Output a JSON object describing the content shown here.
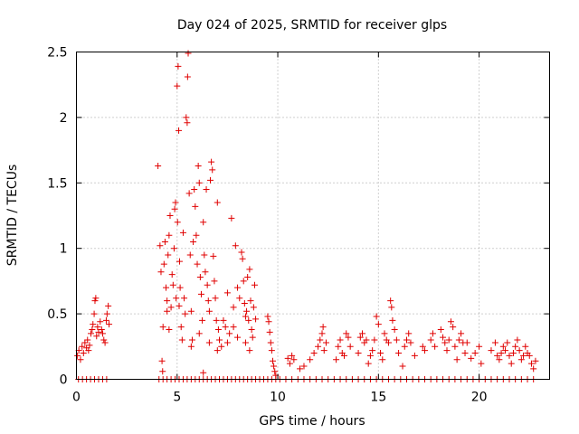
{
  "chart_data": {
    "type": "scatter",
    "title": "Day 024 of 2025, SRMTID for receiver glps",
    "xlabel": "GPS time / hours",
    "ylabel": "SRMTID / TECUs",
    "xlim": [
      0,
      23.5
    ],
    "ylim": [
      0,
      2.5
    ],
    "x_ticks": [
      0,
      5,
      10,
      15,
      20
    ],
    "x_tick_labels": [
      "0",
      "5",
      "10",
      "15",
      "20"
    ],
    "y_ticks": [
      0,
      0.5,
      1,
      1.5,
      2,
      2.5
    ],
    "y_tick_labels": [
      "0",
      "0.5",
      "1",
      "1.5",
      "2",
      "2.5"
    ],
    "grid": true,
    "marker": "+",
    "color": "#e00000",
    "series": [
      {
        "name": "SRMTID",
        "points": [
          [
            0.05,
            0.18
          ],
          [
            0.12,
            0.22
          ],
          [
            0.2,
            0.15
          ],
          [
            0.28,
            0.25
          ],
          [
            0.35,
            0.2
          ],
          [
            0.42,
            0.28
          ],
          [
            0.5,
            0.24
          ],
          [
            0.55,
            0.3
          ],
          [
            0.6,
            0.22
          ],
          [
            0.65,
            0.26
          ],
          [
            0.72,
            0.35
          ],
          [
            0.78,
            0.38
          ],
          [
            0.82,
            0.42
          ],
          [
            0.88,
            0.5
          ],
          [
            0.92,
            0.6
          ],
          [
            0.96,
            0.62
          ],
          [
            1.0,
            0.33
          ],
          [
            1.05,
            0.4
          ],
          [
            1.1,
            0.36
          ],
          [
            1.18,
            0.44
          ],
          [
            1.25,
            0.38
          ],
          [
            1.3,
            0.35
          ],
          [
            1.36,
            0.3
          ],
          [
            1.42,
            0.28
          ],
          [
            1.48,
            0.45
          ],
          [
            1.52,
            0.5
          ],
          [
            1.58,
            0.56
          ],
          [
            1.62,
            0.42
          ],
          [
            0.1,
            0.0
          ],
          [
            0.3,
            0.0
          ],
          [
            0.5,
            0.0
          ],
          [
            0.7,
            0.0
          ],
          [
            0.9,
            0.0
          ],
          [
            1.1,
            0.0
          ],
          [
            1.3,
            0.0
          ],
          [
            1.5,
            0.0
          ],
          [
            4.05,
            1.63
          ],
          [
            4.15,
            1.02
          ],
          [
            4.2,
            0.82
          ],
          [
            4.25,
            0.14
          ],
          [
            4.28,
            0.06
          ],
          [
            4.3,
            0.4
          ],
          [
            4.35,
            0.88
          ],
          [
            4.4,
            1.05
          ],
          [
            4.45,
            0.7
          ],
          [
            4.5,
            0.6
          ],
          [
            4.55,
            0.95
          ],
          [
            4.6,
            1.1
          ],
          [
            4.65,
            1.25
          ],
          [
            4.7,
            0.55
          ],
          [
            4.75,
            0.8
          ],
          [
            4.8,
            0.72
          ],
          [
            4.85,
            1.0
          ],
          [
            4.88,
            1.3
          ],
          [
            4.92,
            1.35
          ],
          [
            4.95,
            0.62
          ],
          [
            5.0,
            2.24
          ],
          [
            5.02,
            1.2
          ],
          [
            5.05,
            2.39
          ],
          [
            5.08,
            1.9
          ],
          [
            5.12,
            0.9
          ],
          [
            5.15,
            0.7
          ],
          [
            5.2,
            0.4
          ],
          [
            5.25,
            0.3
          ],
          [
            5.3,
            1.12
          ],
          [
            5.35,
            0.62
          ],
          [
            5.4,
            0.5
          ],
          [
            5.45,
            2.0
          ],
          [
            5.5,
            1.96
          ],
          [
            5.52,
            2.31
          ],
          [
            5.55,
            2.49
          ],
          [
            5.6,
            1.42
          ],
          [
            5.65,
            0.95
          ],
          [
            5.7,
            0.52
          ],
          [
            5.75,
            0.3
          ],
          [
            5.8,
            1.05
          ],
          [
            5.85,
            1.45
          ],
          [
            5.9,
            1.32
          ],
          [
            5.95,
            1.1
          ],
          [
            6.0,
            0.88
          ],
          [
            6.05,
            1.63
          ],
          [
            6.1,
            1.5
          ],
          [
            6.15,
            0.78
          ],
          [
            6.2,
            0.65
          ],
          [
            6.25,
            0.45
          ],
          [
            6.3,
            1.2
          ],
          [
            6.35,
            0.95
          ],
          [
            6.4,
            0.82
          ],
          [
            6.45,
            1.45
          ],
          [
            6.5,
            0.72
          ],
          [
            6.55,
            0.6
          ],
          [
            6.6,
            0.52
          ],
          [
            6.65,
            1.52
          ],
          [
            6.7,
            1.66
          ],
          [
            6.75,
            1.6
          ],
          [
            6.8,
            0.94
          ],
          [
            6.85,
            0.75
          ],
          [
            6.9,
            0.62
          ],
          [
            6.95,
            0.45
          ],
          [
            7.0,
            1.35
          ],
          [
            7.05,
            0.38
          ],
          [
            7.1,
            0.3
          ],
          [
            7.2,
            0.25
          ],
          [
            7.3,
            0.45
          ],
          [
            7.4,
            0.4
          ],
          [
            7.5,
            0.66
          ],
          [
            7.6,
            0.35
          ],
          [
            7.7,
            1.23
          ],
          [
            7.8,
            0.55
          ],
          [
            7.9,
            1.02
          ],
          [
            8.0,
            0.7
          ],
          [
            8.1,
            0.62
          ],
          [
            8.2,
            0.97
          ],
          [
            8.25,
            0.92
          ],
          [
            8.3,
            0.75
          ],
          [
            8.35,
            0.58
          ],
          [
            8.4,
            0.48
          ],
          [
            8.45,
            0.52
          ],
          [
            8.5,
            0.78
          ],
          [
            8.55,
            0.45
          ],
          [
            8.6,
            0.84
          ],
          [
            8.65,
            0.6
          ],
          [
            8.7,
            0.38
          ],
          [
            8.75,
            0.32
          ],
          [
            8.8,
            0.55
          ],
          [
            8.85,
            0.72
          ],
          [
            8.9,
            0.46
          ],
          [
            4.5,
            0.52
          ],
          [
            4.6,
            0.38
          ],
          [
            5.1,
            0.56
          ],
          [
            5.7,
            0.25
          ],
          [
            6.1,
            0.35
          ],
          [
            6.3,
            0.05
          ],
          [
            6.6,
            0.28
          ],
          [
            7.0,
            0.22
          ],
          [
            7.5,
            0.28
          ],
          [
            7.8,
            0.4
          ],
          [
            8.0,
            0.32
          ],
          [
            8.4,
            0.28
          ],
          [
            8.6,
            0.22
          ],
          [
            4.1,
            0.0
          ],
          [
            4.3,
            0.0
          ],
          [
            4.5,
            0.0
          ],
          [
            4.7,
            0.0
          ],
          [
            4.9,
            0.0
          ],
          [
            5.1,
            0.0
          ],
          [
            5.3,
            0.0
          ],
          [
            5.5,
            0.0
          ],
          [
            5.7,
            0.0
          ],
          [
            5.9,
            0.0
          ],
          [
            6.1,
            0.0
          ],
          [
            6.3,
            0.0
          ],
          [
            6.5,
            0.0
          ],
          [
            6.7,
            0.0
          ],
          [
            6.9,
            0.0
          ],
          [
            7.1,
            0.0
          ],
          [
            7.3,
            0.0
          ],
          [
            7.5,
            0.0
          ],
          [
            7.7,
            0.0
          ],
          [
            7.9,
            0.0
          ],
          [
            8.1,
            0.0
          ],
          [
            8.3,
            0.0
          ],
          [
            8.5,
            0.0
          ],
          [
            8.7,
            0.0
          ],
          [
            8.9,
            0.0
          ],
          [
            9.1,
            0.0
          ],
          [
            9.3,
            0.0
          ],
          [
            9.5,
            0.0
          ],
          [
            9.7,
            0.0
          ],
          [
            9.9,
            0.0
          ],
          [
            9.5,
            0.48
          ],
          [
            9.55,
            0.44
          ],
          [
            9.6,
            0.36
          ],
          [
            9.65,
            0.28
          ],
          [
            9.7,
            0.22
          ],
          [
            9.75,
            0.14
          ],
          [
            9.8,
            0.1
          ],
          [
            9.85,
            0.06
          ],
          [
            9.9,
            0.03
          ],
          [
            10.5,
            0.16
          ],
          [
            10.6,
            0.12
          ],
          [
            10.7,
            0.18
          ],
          [
            10.8,
            0.15
          ],
          [
            11.1,
            0.08
          ],
          [
            11.3,
            0.1
          ],
          [
            11.6,
            0.15
          ],
          [
            11.8,
            0.2
          ],
          [
            12.0,
            0.25
          ],
          [
            12.1,
            0.3
          ],
          [
            12.2,
            0.35
          ],
          [
            12.25,
            0.4
          ],
          [
            12.3,
            0.22
          ],
          [
            12.4,
            0.28
          ],
          [
            12.9,
            0.15
          ],
          [
            13.0,
            0.25
          ],
          [
            13.1,
            0.3
          ],
          [
            13.2,
            0.2
          ],
          [
            13.3,
            0.18
          ],
          [
            13.4,
            0.35
          ],
          [
            13.5,
            0.32
          ],
          [
            13.6,
            0.25
          ],
          [
            14.0,
            0.2
          ],
          [
            14.1,
            0.32
          ],
          [
            14.2,
            0.35
          ],
          [
            14.3,
            0.28
          ],
          [
            14.4,
            0.3
          ],
          [
            14.5,
            0.12
          ],
          [
            14.6,
            0.18
          ],
          [
            14.7,
            0.22
          ],
          [
            14.8,
            0.3
          ],
          [
            14.9,
            0.48
          ],
          [
            15.0,
            0.42
          ],
          [
            15.1,
            0.2
          ],
          [
            15.2,
            0.15
          ],
          [
            15.3,
            0.35
          ],
          [
            15.4,
            0.3
          ],
          [
            15.5,
            0.28
          ],
          [
            15.6,
            0.6
          ],
          [
            15.65,
            0.55
          ],
          [
            15.7,
            0.45
          ],
          [
            15.8,
            0.38
          ],
          [
            15.9,
            0.3
          ],
          [
            16.0,
            0.2
          ],
          [
            16.2,
            0.1
          ],
          [
            16.3,
            0.25
          ],
          [
            16.4,
            0.3
          ],
          [
            16.5,
            0.35
          ],
          [
            16.6,
            0.28
          ],
          [
            16.8,
            0.18
          ],
          [
            17.2,
            0.25
          ],
          [
            17.3,
            0.22
          ],
          [
            17.6,
            0.3
          ],
          [
            17.7,
            0.35
          ],
          [
            17.8,
            0.25
          ],
          [
            18.1,
            0.38
          ],
          [
            18.2,
            0.32
          ],
          [
            18.3,
            0.28
          ],
          [
            18.4,
            0.22
          ],
          [
            18.5,
            0.3
          ],
          [
            18.6,
            0.44
          ],
          [
            18.7,
            0.4
          ],
          [
            18.8,
            0.25
          ],
          [
            18.9,
            0.15
          ],
          [
            19.0,
            0.3
          ],
          [
            19.1,
            0.35
          ],
          [
            19.2,
            0.28
          ],
          [
            19.3,
            0.2
          ],
          [
            19.4,
            0.28
          ],
          [
            19.6,
            0.16
          ],
          [
            19.8,
            0.2
          ],
          [
            20.0,
            0.25
          ],
          [
            20.1,
            0.12
          ],
          [
            20.6,
            0.22
          ],
          [
            20.8,
            0.28
          ],
          [
            20.9,
            0.18
          ],
          [
            21.0,
            0.15
          ],
          [
            21.1,
            0.2
          ],
          [
            21.2,
            0.25
          ],
          [
            21.3,
            0.22
          ],
          [
            21.4,
            0.28
          ],
          [
            21.5,
            0.18
          ],
          [
            21.6,
            0.12
          ],
          [
            21.7,
            0.2
          ],
          [
            21.8,
            0.25
          ],
          [
            21.9,
            0.3
          ],
          [
            22.0,
            0.22
          ],
          [
            22.1,
            0.15
          ],
          [
            22.2,
            0.18
          ],
          [
            22.3,
            0.25
          ],
          [
            22.4,
            0.2
          ],
          [
            22.5,
            0.18
          ],
          [
            22.6,
            0.12
          ],
          [
            22.7,
            0.08
          ],
          [
            22.8,
            0.14
          ],
          [
            10.1,
            0.0
          ],
          [
            10.4,
            0.0
          ],
          [
            10.7,
            0.0
          ],
          [
            11.0,
            0.0
          ],
          [
            11.3,
            0.0
          ],
          [
            11.6,
            0.0
          ],
          [
            11.9,
            0.0
          ],
          [
            12.2,
            0.0
          ],
          [
            12.5,
            0.0
          ],
          [
            12.8,
            0.0
          ],
          [
            13.1,
            0.0
          ],
          [
            13.4,
            0.0
          ],
          [
            13.7,
            0.0
          ],
          [
            14.0,
            0.0
          ],
          [
            14.3,
            0.0
          ],
          [
            14.6,
            0.0
          ],
          [
            14.9,
            0.0
          ],
          [
            15.2,
            0.0
          ],
          [
            15.5,
            0.0
          ],
          [
            15.8,
            0.0
          ],
          [
            16.1,
            0.0
          ],
          [
            16.4,
            0.0
          ],
          [
            16.7,
            0.0
          ],
          [
            17.0,
            0.0
          ],
          [
            17.3,
            0.0
          ],
          [
            17.6,
            0.0
          ],
          [
            17.9,
            0.0
          ],
          [
            18.2,
            0.0
          ],
          [
            18.5,
            0.0
          ],
          [
            18.8,
            0.0
          ],
          [
            19.1,
            0.0
          ],
          [
            19.4,
            0.0
          ],
          [
            19.7,
            0.0
          ],
          [
            20.0,
            0.0
          ],
          [
            20.3,
            0.0
          ],
          [
            20.6,
            0.0
          ],
          [
            20.9,
            0.0
          ],
          [
            21.2,
            0.0
          ],
          [
            21.5,
            0.0
          ],
          [
            21.8,
            0.0
          ],
          [
            22.1,
            0.0
          ],
          [
            22.4,
            0.0
          ],
          [
            22.7,
            0.0
          ]
        ]
      }
    ]
  }
}
